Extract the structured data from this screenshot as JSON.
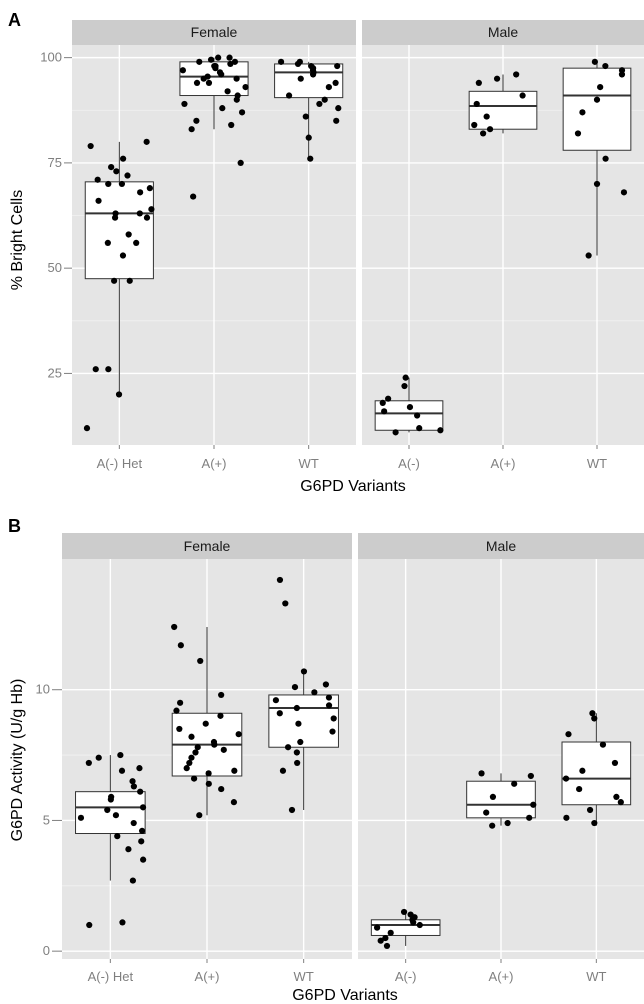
{
  "chart_data": [
    {
      "type": "box",
      "panel_label": "A",
      "xlabel": "G6PD Variants",
      "ylabel": "% Bright Cells",
      "ylim": [
        8,
        103
      ],
      "yticks": [
        25,
        50,
        75,
        100
      ],
      "facets": [
        {
          "name": "Female",
          "categories": [
            "A(-) Het",
            "A(+)",
            "WT"
          ],
          "boxes": [
            {
              "min": 20,
              "q1": 47.5,
              "median": 63,
              "q3": 70.5,
              "max": 80,
              "outliers": [
                12
              ],
              "points": [
                80,
                79,
                76,
                74,
                73,
                72,
                71,
                70,
                70,
                69,
                68,
                66,
                64,
                63,
                63,
                62,
                62,
                58,
                56,
                56,
                53,
                47,
                47,
                26,
                26,
                20,
                12
              ]
            },
            {
              "min": 83,
              "q1": 91,
              "median": 95.5,
              "q3": 99,
              "max": 100,
              "outliers": [
                75,
                67
              ],
              "points": [
                100,
                100,
                99.5,
                99,
                99,
                98.5,
                98,
                98,
                97.5,
                97,
                96.5,
                96,
                95.5,
                95,
                95,
                94,
                94,
                93,
                92,
                91,
                90,
                89,
                88,
                87,
                85,
                84,
                83,
                75,
                67
              ]
            },
            {
              "min": 76,
              "q1": 90.5,
              "median": 96.5,
              "q3": 98.5,
              "max": 99,
              "outliers": [],
              "points": [
                99,
                99,
                98.5,
                98,
                98,
                97.5,
                97,
                96.5,
                96,
                95,
                94,
                93,
                91,
                90,
                89,
                88,
                86,
                85,
                81,
                76
              ]
            }
          ]
        },
        {
          "name": "Male",
          "categories": [
            "A(-)",
            "A(+)",
            "WT"
          ],
          "boxes": [
            {
              "min": 11,
              "q1": 11.5,
              "median": 15.5,
              "q3": 18.5,
              "max": 24,
              "outliers": [],
              "points": [
                24,
                22,
                19,
                18,
                17,
                16,
                15,
                12,
                11.5,
                11
              ]
            },
            {
              "min": 82,
              "q1": 83,
              "median": 88.5,
              "q3": 92,
              "max": 96,
              "outliers": [],
              "points": [
                96,
                95,
                94,
                91,
                89,
                86,
                84,
                83,
                82
              ]
            },
            {
              "min": 53,
              "q1": 78,
              "median": 91,
              "q3": 97.5,
              "max": 99,
              "outliers": [],
              "points": [
                99,
                98,
                97,
                96,
                93,
                90,
                87,
                82,
                76,
                70,
                68,
                53
              ]
            }
          ]
        }
      ]
    },
    {
      "type": "box",
      "panel_label": "B",
      "xlabel": "G6PD Variants",
      "ylabel": "G6PD Activity (U/g Hb)",
      "ylim": [
        -0.3,
        15
      ],
      "yticks": [
        0,
        5,
        10
      ],
      "facets": [
        {
          "name": "Female",
          "categories": [
            "A(-) Het",
            "A(+)",
            "WT"
          ],
          "boxes": [
            {
              "min": 2.7,
              "q1": 4.5,
              "median": 5.5,
              "q3": 6.1,
              "max": 7.5,
              "outliers": [
                1.1,
                1.0
              ],
              "points": [
                7.5,
                7.4,
                7.2,
                7.0,
                6.9,
                6.5,
                6.3,
                6.1,
                5.9,
                5.8,
                5.5,
                5.4,
                5.2,
                5.1,
                4.9,
                4.6,
                4.4,
                4.2,
                3.9,
                3.5,
                2.7,
                1.1,
                1.0
              ]
            },
            {
              "min": 5.2,
              "q1": 6.7,
              "median": 7.9,
              "q3": 9.1,
              "max": 12.4,
              "outliers": [],
              "points": [
                12.4,
                11.7,
                11.1,
                9.8,
                9.5,
                9.2,
                9.0,
                8.7,
                8.5,
                8.3,
                8.2,
                8.0,
                7.9,
                7.8,
                7.7,
                7.6,
                7.4,
                7.2,
                7.0,
                6.9,
                6.8,
                6.6,
                6.4,
                6.2,
                5.7,
                5.2
              ]
            },
            {
              "min": 5.4,
              "q1": 7.8,
              "median": 9.3,
              "q3": 9.8,
              "max": 10.8,
              "outliers": [
                14.2,
                13.3
              ],
              "points": [
                14.2,
                13.3,
                10.7,
                10.2,
                10.1,
                9.9,
                9.7,
                9.6,
                9.4,
                9.3,
                9.1,
                8.9,
                8.7,
                8.4,
                8.0,
                7.8,
                7.6,
                7.2,
                6.9,
                5.4
              ]
            }
          ]
        },
        {
          "name": "Male",
          "categories": [
            "A(-)",
            "A(+)",
            "WT"
          ],
          "boxes": [
            {
              "min": 0.2,
              "q1": 0.6,
              "median": 1.0,
              "q3": 1.2,
              "max": 1.5,
              "outliers": [],
              "points": [
                1.5,
                1.4,
                1.3,
                1.2,
                1.1,
                1.0,
                0.9,
                0.7,
                0.5,
                0.4,
                0.2
              ]
            },
            {
              "min": 4.8,
              "q1": 5.1,
              "median": 5.6,
              "q3": 6.5,
              "max": 6.8,
              "outliers": [],
              "points": [
                6.8,
                6.7,
                6.4,
                5.9,
                5.6,
                5.3,
                5.1,
                4.9,
                4.8
              ]
            },
            {
              "min": 4.8,
              "q1": 5.6,
              "median": 6.6,
              "q3": 8.0,
              "max": 9.1,
              "outliers": [],
              "points": [
                9.1,
                8.9,
                8.3,
                7.9,
                7.2,
                6.9,
                6.6,
                6.2,
                5.9,
                5.7,
                5.4,
                5.1,
                4.9
              ]
            }
          ]
        }
      ]
    }
  ],
  "colors": {
    "panel_background": "#e5e5e5",
    "strip_background": "#cccccc",
    "grid": "#ffffff",
    "box_fill": "#ffffff",
    "box_line": "#333333",
    "point": "#000000",
    "tick_label": "#7f7f7f",
    "strip_label": "#1a1a1a"
  },
  "point_style": "jittered black dots"
}
